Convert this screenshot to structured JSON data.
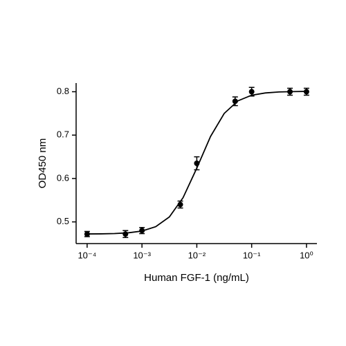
{
  "chart_data": {
    "type": "scatter",
    "x_label": "Human FGF-1 (ng/mL)",
    "y_label": "OD450 nm",
    "x": [
      0.0001,
      0.0005,
      0.001,
      0.005,
      0.01,
      0.05,
      0.1,
      0.5,
      1
    ],
    "series": [
      {
        "color": "#000000",
        "values": [
          0.472,
          0.472,
          0.48,
          0.54,
          0.635,
          0.778,
          0.8,
          0.8,
          0.8
        ],
        "errors": [
          0.006,
          0.008,
          0.007,
          0.008,
          0.015,
          0.01,
          0.01,
          0.008,
          0.008
        ]
      }
    ],
    "fit": {
      "color": "#000000",
      "x": [
        0.0001,
        0.000178,
        0.000316,
        0.000562,
        0.001,
        0.00178,
        0.00316,
        0.00562,
        0.01,
        0.0178,
        0.0316,
        0.0562,
        0.1,
        0.178,
        0.316,
        0.562,
        1
      ],
      "values": [
        0.4722,
        0.4724,
        0.4731,
        0.4748,
        0.4789,
        0.4889,
        0.5114,
        0.5559,
        0.624,
        0.697,
        0.75,
        0.779,
        0.792,
        0.7972,
        0.7995,
        0.8003,
        0.8008
      ]
    },
    "x_log": true,
    "xlim": [
      6.3e-05,
      1.55
    ],
    "ylim": [
      0.45,
      0.82
    ],
    "xticks": [
      {
        "value": 0.0001,
        "label": "10⁻⁴"
      },
      {
        "value": 0.001,
        "label": "10⁻³"
      },
      {
        "value": 0.01,
        "label": "10⁻²"
      },
      {
        "value": 0.1,
        "label": "10⁻¹"
      },
      {
        "value": 1,
        "label": "10⁰"
      }
    ],
    "yticks": [
      0.5,
      0.6,
      0.7,
      0.8
    ],
    "grid": false
  }
}
